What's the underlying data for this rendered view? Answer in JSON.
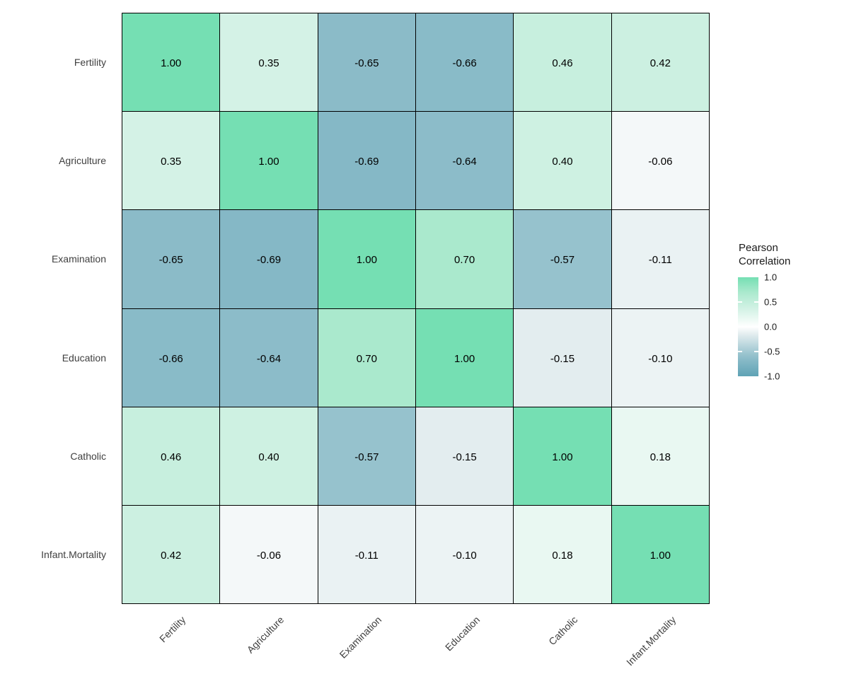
{
  "chart_data": {
    "type": "heatmap",
    "title": "",
    "variables": [
      "Fertility",
      "Agriculture",
      "Examination",
      "Education",
      "Catholic",
      "Infant.Mortality"
    ],
    "matrix": [
      [
        1.0,
        0.35,
        -0.65,
        -0.66,
        0.46,
        0.42
      ],
      [
        0.35,
        1.0,
        -0.69,
        -0.64,
        0.4,
        -0.06
      ],
      [
        -0.65,
        -0.69,
        1.0,
        0.7,
        -0.57,
        -0.11
      ],
      [
        -0.66,
        -0.64,
        0.7,
        1.0,
        -0.15,
        -0.1
      ],
      [
        0.46,
        0.4,
        -0.57,
        -0.15,
        1.0,
        0.18
      ],
      [
        0.42,
        -0.06,
        -0.11,
        -0.1,
        0.18,
        1.0
      ]
    ],
    "value_decimals": 2,
    "axes": {
      "xlabel": "",
      "ylabel": "",
      "x_tick_angle": 45,
      "grid": false
    },
    "legend": {
      "title": "Pearson Correlation",
      "position": "right",
      "ticks": [
        {
          "label": "1.0",
          "value": 1.0
        },
        {
          "label": "0.5",
          "value": 0.5
        },
        {
          "label": "0.0",
          "value": 0.0
        },
        {
          "label": "-0.5",
          "value": -0.5
        },
        {
          "label": "-1.0",
          "value": -1.0
        }
      ],
      "range": [
        -1.0,
        1.0
      ]
    },
    "colors": {
      "high": "#75dfb3",
      "mid": "#ffffff",
      "low": "#5fa3b5",
      "cell_border": "#000000",
      "cell_text": "#000000",
      "axis_text": "#404040",
      "stops": [
        {
          "v": 1.0,
          "color": "#75dfb3"
        },
        {
          "v": 0.7,
          "color": "#aae9cd"
        },
        {
          "v": 0.35,
          "color": "#d4f2e6"
        },
        {
          "v": 0.0,
          "color": "#ffffff"
        },
        {
          "v": -0.15,
          "color": "#e3edef"
        },
        {
          "v": -0.57,
          "color": "#96c2cd"
        },
        {
          "v": -0.69,
          "color": "#85b8c6"
        },
        {
          "v": -1.0,
          "color": "#5fa3b5"
        }
      ]
    }
  }
}
